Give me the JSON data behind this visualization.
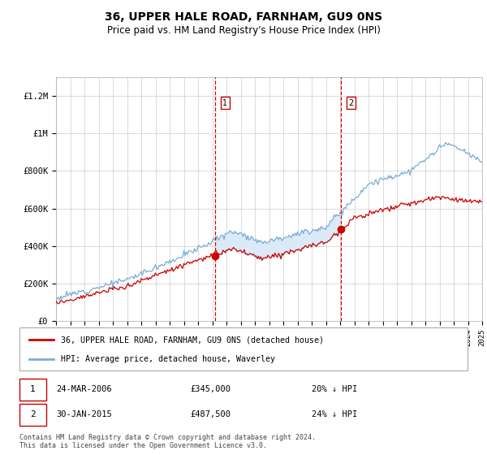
{
  "title": "36, UPPER HALE ROAD, FARNHAM, GU9 0NS",
  "subtitle": "Price paid vs. HM Land Registry's House Price Index (HPI)",
  "ylim": [
    0,
    1300000
  ],
  "yticks": [
    0,
    200000,
    400000,
    600000,
    800000,
    1000000,
    1200000
  ],
  "ytick_labels": [
    "£0",
    "£200K",
    "£400K",
    "£600K",
    "£800K",
    "£1M",
    "£1.2M"
  ],
  "legend_label_red": "36, UPPER HALE ROAD, FARNHAM, GU9 0NS (detached house)",
  "legend_label_blue": "HPI: Average price, detached house, Waverley",
  "annotation1_date": "24-MAR-2006",
  "annotation1_price": "£345,000",
  "annotation1_hpi": "20% ↓ HPI",
  "annotation2_date": "30-JAN-2015",
  "annotation2_price": "£487,500",
  "annotation2_hpi": "24% ↓ HPI",
  "footer": "Contains HM Land Registry data © Crown copyright and database right 2024.\nThis data is licensed under the Open Government Licence v3.0.",
  "sale1_year": 2006.22,
  "sale1_price": 345000,
  "sale2_year": 2015.08,
  "sale2_price": 487500,
  "red_color": "#cc0000",
  "blue_color": "#7aacda",
  "shade_color": "#dbeaf7",
  "grid_color": "#cccccc",
  "vline_color": "#cc0000",
  "background_color": "#ffffff",
  "xstart": 1995,
  "xend": 2025
}
